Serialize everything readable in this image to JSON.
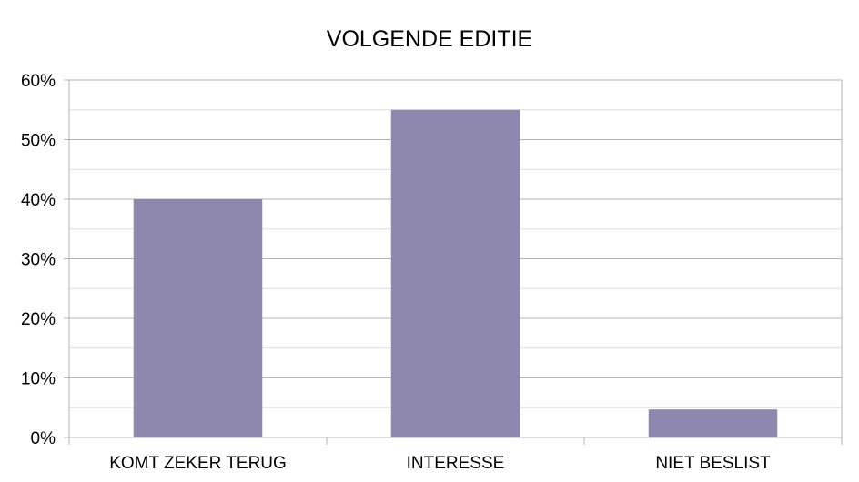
{
  "chart_data": {
    "type": "bar",
    "title": "VOLGENDE EDITIE",
    "xlabel": "",
    "ylabel": "",
    "categories": [
      "KOMT ZEKER TERUG",
      "INTERESSE",
      "NIET BESLIST"
    ],
    "series": [
      {
        "values": [
          0.4,
          0.55,
          0.047
        ],
        "color": "#8e87ae"
      }
    ],
    "ylim": [
      0,
      0.6
    ],
    "y_ticks": [
      {
        "value": 0.0,
        "label": "0%"
      },
      {
        "value": 0.1,
        "label": "10%"
      },
      {
        "value": 0.2,
        "label": "20%"
      },
      {
        "value": 0.3,
        "label": "30%"
      },
      {
        "value": 0.4,
        "label": "40%"
      },
      {
        "value": 0.5,
        "label": "50%"
      },
      {
        "value": 0.6,
        "label": "60%"
      }
    ],
    "grid": true,
    "minor_grid": true,
    "legend": "none",
    "colors": {
      "bar": "#8e87ae",
      "grid_major": "#b3b3b3",
      "grid_minor": "#dddddd",
      "axis": "#b3b3b3"
    }
  }
}
